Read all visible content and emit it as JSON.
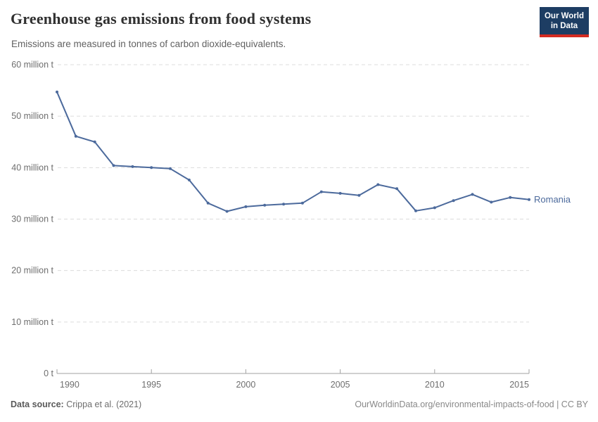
{
  "header": {
    "title": "Greenhouse gas emissions from food systems",
    "subtitle": "Emissions are measured in tonnes of carbon dioxide-equivalents.",
    "logo": {
      "line1": "Our World",
      "line2": "in Data"
    }
  },
  "footer": {
    "source_label": "Data source:",
    "source_value": " Crippa et al. (2021)",
    "credit": "OurWorldinData.org/environmental-impacts-of-food | CC BY"
  },
  "colors": {
    "series": "#4c6a9c",
    "grid": "#dcdcdc",
    "axis": "#a1a1a1",
    "tick_label": "#6e6e6e",
    "logo_bg": "#1d3d63",
    "logo_stripe": "#d42b21"
  },
  "chart_data": {
    "type": "line",
    "title": "Greenhouse gas emissions from food systems",
    "subtitle": "Emissions are measured in tonnes of carbon dioxide-equivalents.",
    "unit": "million t",
    "x": [
      1990,
      1991,
      1992,
      1993,
      1994,
      1995,
      1996,
      1997,
      1998,
      1999,
      2000,
      2001,
      2002,
      2003,
      2004,
      2005,
      2006,
      2007,
      2008,
      2009,
      2010,
      2011,
      2012,
      2013,
      2014,
      2015
    ],
    "series": [
      {
        "name": "Romania",
        "color": "#4c6a9c",
        "values": [
          54.7,
          46.1,
          45.0,
          40.4,
          40.2,
          40.0,
          39.8,
          37.6,
          33.1,
          31.5,
          32.4,
          32.7,
          32.9,
          33.1,
          35.3,
          35.0,
          34.6,
          36.7,
          35.9,
          31.6,
          32.2,
          33.6,
          34.8,
          33.3,
          34.2,
          33.8
        ]
      }
    ],
    "xlim": [
      1990,
      2015
    ],
    "ylim": [
      0,
      60
    ],
    "x_ticks": [
      "1990",
      "1995",
      "2000",
      "2005",
      "2010",
      "2015"
    ],
    "y_ticks": [
      {
        "value": 0,
        "label": "0 t"
      },
      {
        "value": 10,
        "label": "10 million t"
      },
      {
        "value": 20,
        "label": "20 million t"
      },
      {
        "value": 30,
        "label": "30 million t"
      },
      {
        "value": 40,
        "label": "40 million t"
      },
      {
        "value": 50,
        "label": "50 million t"
      },
      {
        "value": 60,
        "label": "60 million t"
      }
    ],
    "grid": true,
    "legend_position": "end-of-line"
  }
}
